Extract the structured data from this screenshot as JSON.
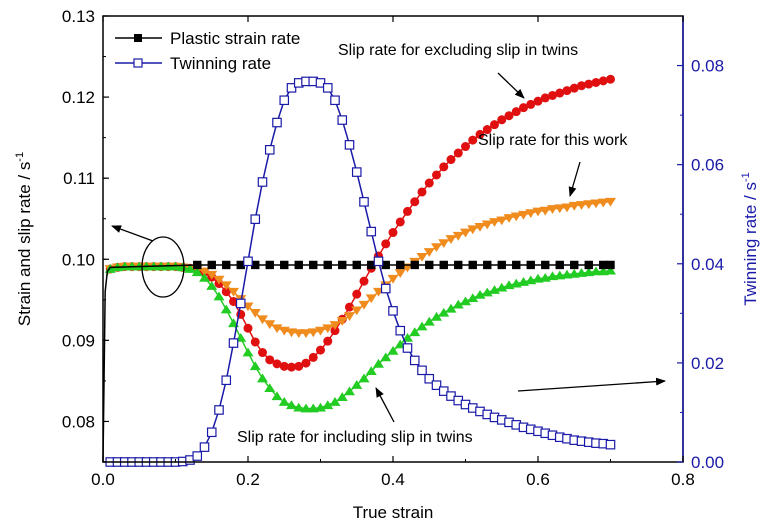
{
  "chart_data": {
    "type": "line",
    "xlabel": "True strain",
    "ylabel": "Strain and slip rate / s",
    "ylabel_sup": "-1",
    "y2label": "Twinning rate / s",
    "y2label_sup": "-1",
    "xlim": [
      0.0,
      0.8
    ],
    "ylim": [
      0.075,
      0.13
    ],
    "y2lim": [
      0.0,
      0.09
    ],
    "xticks": [
      "0.0",
      "0.2",
      "0.4",
      "0.6",
      "0.8"
    ],
    "yticks": [
      "0.08",
      "0.09",
      "0.10",
      "0.11",
      "0.12",
      "0.13"
    ],
    "y2ticks": [
      "0.00",
      "0.02",
      "0.04",
      "0.06",
      "0.08"
    ],
    "colors": {
      "left_axis": "#000000",
      "right_axis": "#1a1aa8"
    },
    "legend_position": "top-left",
    "legend": [
      {
        "label": "Plastic strain rate",
        "color": "#000000",
        "marker": "filled-square"
      },
      {
        "label": "Twinning rate",
        "color": "#1a1aa8",
        "marker": "open-square"
      }
    ],
    "series": [
      {
        "name": "Plastic strain rate",
        "axis": "left",
        "color": "#000000",
        "marker": "filled-square",
        "x": [
          0.0,
          0.003,
          0.006,
          0.01,
          0.13,
          0.15,
          0.17,
          0.19,
          0.21,
          0.23,
          0.25,
          0.27,
          0.29,
          0.31,
          0.33,
          0.35,
          0.37,
          0.39,
          0.41,
          0.43,
          0.45,
          0.47,
          0.49,
          0.51,
          0.53,
          0.55,
          0.57,
          0.59,
          0.61,
          0.63,
          0.65,
          0.67,
          0.69,
          0.7
        ],
        "y": [
          0.075,
          0.096,
          0.0985,
          0.099,
          0.0993,
          0.0993,
          0.0993,
          0.0993,
          0.0993,
          0.0993,
          0.0993,
          0.0993,
          0.0993,
          0.0993,
          0.0993,
          0.0993,
          0.0993,
          0.0993,
          0.0993,
          0.0993,
          0.0993,
          0.0993,
          0.0993,
          0.0993,
          0.0993,
          0.0993,
          0.0993,
          0.0993,
          0.0993,
          0.0993,
          0.0993,
          0.0993,
          0.0993,
          0.0993
        ],
        "marker_from": 4
      },
      {
        "name": "Twinning rate",
        "axis": "right",
        "color": "#1a1aa8",
        "marker": "open-square",
        "x": [
          0.0,
          0.01,
          0.02,
          0.03,
          0.04,
          0.05,
          0.06,
          0.07,
          0.08,
          0.09,
          0.1,
          0.11,
          0.12,
          0.13,
          0.14,
          0.15,
          0.16,
          0.17,
          0.18,
          0.19,
          0.2,
          0.21,
          0.22,
          0.23,
          0.24,
          0.25,
          0.26,
          0.27,
          0.28,
          0.29,
          0.3,
          0.31,
          0.32,
          0.33,
          0.34,
          0.35,
          0.36,
          0.37,
          0.38,
          0.39,
          0.4,
          0.41,
          0.42,
          0.43,
          0.44,
          0.45,
          0.46,
          0.47,
          0.48,
          0.49,
          0.5,
          0.51,
          0.52,
          0.53,
          0.54,
          0.55,
          0.56,
          0.57,
          0.58,
          0.59,
          0.6,
          0.61,
          0.62,
          0.63,
          0.64,
          0.65,
          0.66,
          0.67,
          0.68,
          0.69,
          0.7
        ],
        "y": [
          0.0,
          0.0,
          0.0,
          0.0,
          0.0,
          0.0,
          0.0,
          0.0,
          0.0,
          0.0,
          0.0,
          0.0001,
          0.0004,
          0.0012,
          0.003,
          0.006,
          0.0105,
          0.0165,
          0.024,
          0.032,
          0.0405,
          0.049,
          0.0565,
          0.063,
          0.0685,
          0.073,
          0.0755,
          0.0765,
          0.0768,
          0.0768,
          0.0765,
          0.0755,
          0.073,
          0.069,
          0.064,
          0.0585,
          0.0525,
          0.0465,
          0.0405,
          0.035,
          0.0305,
          0.0265,
          0.023,
          0.0205,
          0.0185,
          0.0168,
          0.0155,
          0.0143,
          0.0133,
          0.0124,
          0.0116,
          0.0109,
          0.0102,
          0.0096,
          0.009,
          0.0085,
          0.008,
          0.0075,
          0.007,
          0.0066,
          0.0062,
          0.0058,
          0.0054,
          0.005,
          0.0047,
          0.0044,
          0.0042,
          0.004,
          0.0038,
          0.0037,
          0.0035
        ]
      },
      {
        "name": "Slip rate for excluding slip in twins",
        "axis": "left",
        "color": "#e01010",
        "marker": "filled-circle",
        "x": [
          0.005,
          0.01,
          0.02,
          0.03,
          0.04,
          0.05,
          0.06,
          0.07,
          0.08,
          0.09,
          0.1,
          0.11,
          0.12,
          0.13,
          0.14,
          0.15,
          0.16,
          0.17,
          0.18,
          0.19,
          0.2,
          0.21,
          0.22,
          0.23,
          0.24,
          0.25,
          0.26,
          0.27,
          0.28,
          0.29,
          0.3,
          0.31,
          0.32,
          0.33,
          0.34,
          0.35,
          0.36,
          0.37,
          0.38,
          0.39,
          0.4,
          0.41,
          0.42,
          0.43,
          0.44,
          0.45,
          0.46,
          0.47,
          0.48,
          0.49,
          0.5,
          0.51,
          0.52,
          0.53,
          0.54,
          0.55,
          0.56,
          0.57,
          0.58,
          0.59,
          0.6,
          0.61,
          0.62,
          0.63,
          0.64,
          0.65,
          0.66,
          0.67,
          0.68,
          0.69,
          0.7
        ],
        "y": [
          0.098,
          0.0988,
          0.099,
          0.0991,
          0.0991,
          0.0991,
          0.0991,
          0.0991,
          0.0991,
          0.0991,
          0.0991,
          0.099,
          0.0989,
          0.0987,
          0.0984,
          0.0978,
          0.097,
          0.096,
          0.0948,
          0.0932,
          0.0915,
          0.0898,
          0.0885,
          0.0876,
          0.0871,
          0.0868,
          0.0867,
          0.0868,
          0.0872,
          0.0879,
          0.0888,
          0.0899,
          0.0912,
          0.0926,
          0.0941,
          0.0957,
          0.0973,
          0.0989,
          0.1004,
          0.1019,
          0.1033,
          0.1046,
          0.1059,
          0.1071,
          0.1083,
          0.1094,
          0.1104,
          0.1114,
          0.1123,
          0.1131,
          0.1139,
          0.1147,
          0.1154,
          0.116,
          0.1166,
          0.1172,
          0.1177,
          0.1182,
          0.1187,
          0.1191,
          0.1195,
          0.1199,
          0.1202,
          0.1205,
          0.1208,
          0.1211,
          0.1214,
          0.1216,
          0.1218,
          0.122,
          0.1222
        ]
      },
      {
        "name": "Slip rate for this work",
        "axis": "left",
        "color": "#f08c1e",
        "marker": "filled-triangle-down",
        "x": [
          0.005,
          0.01,
          0.02,
          0.03,
          0.04,
          0.05,
          0.06,
          0.07,
          0.08,
          0.09,
          0.1,
          0.11,
          0.12,
          0.13,
          0.14,
          0.15,
          0.16,
          0.17,
          0.18,
          0.19,
          0.2,
          0.21,
          0.22,
          0.23,
          0.24,
          0.25,
          0.26,
          0.27,
          0.28,
          0.29,
          0.3,
          0.31,
          0.32,
          0.33,
          0.34,
          0.35,
          0.36,
          0.37,
          0.38,
          0.39,
          0.4,
          0.41,
          0.42,
          0.43,
          0.44,
          0.45,
          0.46,
          0.47,
          0.48,
          0.49,
          0.5,
          0.51,
          0.52,
          0.53,
          0.54,
          0.55,
          0.56,
          0.57,
          0.58,
          0.59,
          0.6,
          0.61,
          0.62,
          0.63,
          0.64,
          0.65,
          0.66,
          0.67,
          0.68,
          0.69,
          0.7
        ],
        "y": [
          0.098,
          0.0988,
          0.099,
          0.0991,
          0.0991,
          0.0991,
          0.0991,
          0.0991,
          0.0991,
          0.0991,
          0.0991,
          0.099,
          0.0989,
          0.0988,
          0.0985,
          0.0981,
          0.0975,
          0.0968,
          0.096,
          0.0951,
          0.0942,
          0.0934,
          0.0926,
          0.092,
          0.0915,
          0.0912,
          0.091,
          0.0909,
          0.0909,
          0.091,
          0.0912,
          0.0915,
          0.0919,
          0.0924,
          0.093,
          0.0937,
          0.0944,
          0.0952,
          0.096,
          0.0968,
          0.0976,
          0.0983,
          0.099,
          0.0997,
          0.1003,
          0.1009,
          0.1015,
          0.102,
          0.1025,
          0.1029,
          0.1033,
          0.1037,
          0.104,
          0.1043,
          0.1046,
          0.1048,
          0.1051,
          0.1053,
          0.1055,
          0.1057,
          0.1059,
          0.106,
          0.1062,
          0.1063,
          0.1064,
          0.1066,
          0.1067,
          0.1068,
          0.1069,
          0.107,
          0.1071
        ]
      },
      {
        "name": "Slip rate for including slip in twins",
        "axis": "left",
        "color": "#22cc22",
        "marker": "filled-triangle-up",
        "x": [
          0.005,
          0.01,
          0.02,
          0.03,
          0.04,
          0.05,
          0.06,
          0.07,
          0.08,
          0.09,
          0.1,
          0.11,
          0.12,
          0.13,
          0.14,
          0.15,
          0.16,
          0.17,
          0.18,
          0.19,
          0.2,
          0.21,
          0.22,
          0.23,
          0.24,
          0.25,
          0.26,
          0.27,
          0.28,
          0.29,
          0.3,
          0.31,
          0.32,
          0.33,
          0.34,
          0.35,
          0.36,
          0.37,
          0.38,
          0.39,
          0.4,
          0.41,
          0.42,
          0.43,
          0.44,
          0.45,
          0.46,
          0.47,
          0.48,
          0.49,
          0.5,
          0.51,
          0.52,
          0.53,
          0.54,
          0.55,
          0.56,
          0.57,
          0.58,
          0.59,
          0.6,
          0.61,
          0.62,
          0.63,
          0.64,
          0.65,
          0.66,
          0.67,
          0.68,
          0.69,
          0.7
        ],
        "y": [
          0.098,
          0.0988,
          0.099,
          0.0991,
          0.0991,
          0.0991,
          0.0991,
          0.0991,
          0.0991,
          0.0991,
          0.0991,
          0.099,
          0.0988,
          0.0984,
          0.0977,
          0.0967,
          0.0954,
          0.0938,
          0.0921,
          0.0903,
          0.0885,
          0.0868,
          0.0853,
          0.0841,
          0.0831,
          0.0824,
          0.082,
          0.0817,
          0.0816,
          0.0816,
          0.0817,
          0.082,
          0.0824,
          0.083,
          0.0837,
          0.0845,
          0.0853,
          0.0862,
          0.0871,
          0.0879,
          0.0887,
          0.0895,
          0.0903,
          0.091,
          0.0917,
          0.0923,
          0.0929,
          0.0934,
          0.0939,
          0.0944,
          0.0948,
          0.0952,
          0.0956,
          0.0959,
          0.0962,
          0.0965,
          0.0968,
          0.097,
          0.0972,
          0.0974,
          0.0976,
          0.0977,
          0.0979,
          0.098,
          0.0981,
          0.0982,
          0.0983,
          0.0984,
          0.0985,
          0.0985,
          0.0986
        ]
      }
    ],
    "annotations": [
      {
        "text": "Slip rate for excluding slip in twins",
        "target": "Slip rate for excluding slip in twins"
      },
      {
        "text": "Slip rate for this work",
        "target": "Slip rate for this work"
      },
      {
        "text": "Slip rate for including slip in twins",
        "target": "Slip rate for including slip in twins"
      }
    ]
  }
}
